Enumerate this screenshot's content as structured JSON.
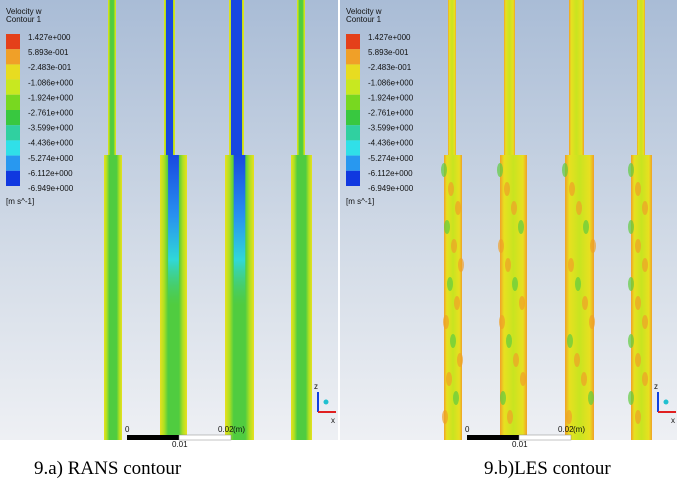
{
  "panels": [
    {
      "legend_title": [
        "Velocity w",
        "Contour 1"
      ],
      "legend_labels": [
        "1.427e+000",
        "5.893e-001",
        "-2.483e-001",
        "-1.086e+000",
        "-1.924e+000",
        "-2.761e+000",
        "-3.599e+000",
        "-4.436e+000",
        "-5.274e+000",
        "-6.112e+000",
        "-6.949e+000"
      ],
      "unit": "[m s^-1]",
      "scale": {
        "start": "0",
        "end": "0.02",
        "unit": "(m)",
        "mid": "0.01"
      },
      "axes": {
        "z": "z",
        "x": "x"
      },
      "caption": "9.a) RANS contour"
    },
    {
      "legend_title": [
        "Velocity w",
        "Contour 1"
      ],
      "legend_labels": [
        "1.427e+000",
        "5.893e-001",
        "-2.483e-001",
        "-1.086e+000",
        "-1.924e+000",
        "-2.761e+000",
        "-3.599e+000",
        "-4.436e+000",
        "-5.274e+000",
        "-6.112e+000",
        "-6.949e+000"
      ],
      "unit": "[m s^-1]",
      "scale": {
        "start": "0",
        "end": "0.02",
        "unit": "(m)",
        "mid": "0.01"
      },
      "axes": {
        "z": "z",
        "x": "x"
      },
      "caption": "9.b)LES contour"
    }
  ]
}
